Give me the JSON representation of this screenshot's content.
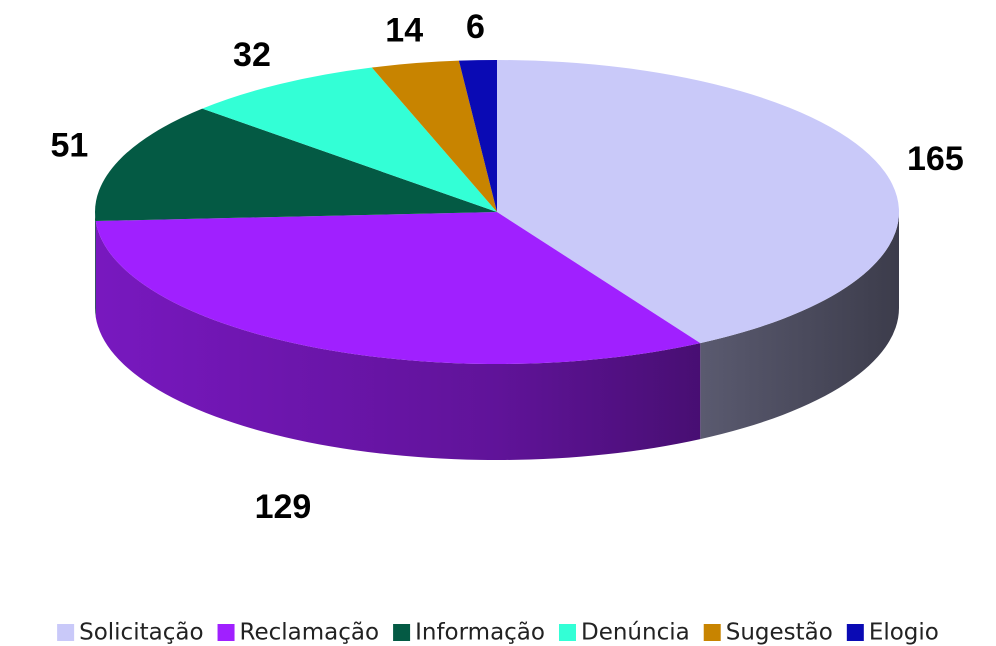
{
  "chart_data": {
    "type": "pie",
    "categories": [
      "Solicitação",
      "Reclamação",
      "Informação",
      "Denúncia",
      "Sugestão",
      "Elogio"
    ],
    "values": [
      165,
      129,
      51,
      32,
      14,
      6
    ],
    "colors": [
      "#c9c9f9",
      "#a020ff",
      "#045a44",
      "#33ffd6",
      "#c88400",
      "#0a0ab4"
    ],
    "legend": "bottom"
  }
}
